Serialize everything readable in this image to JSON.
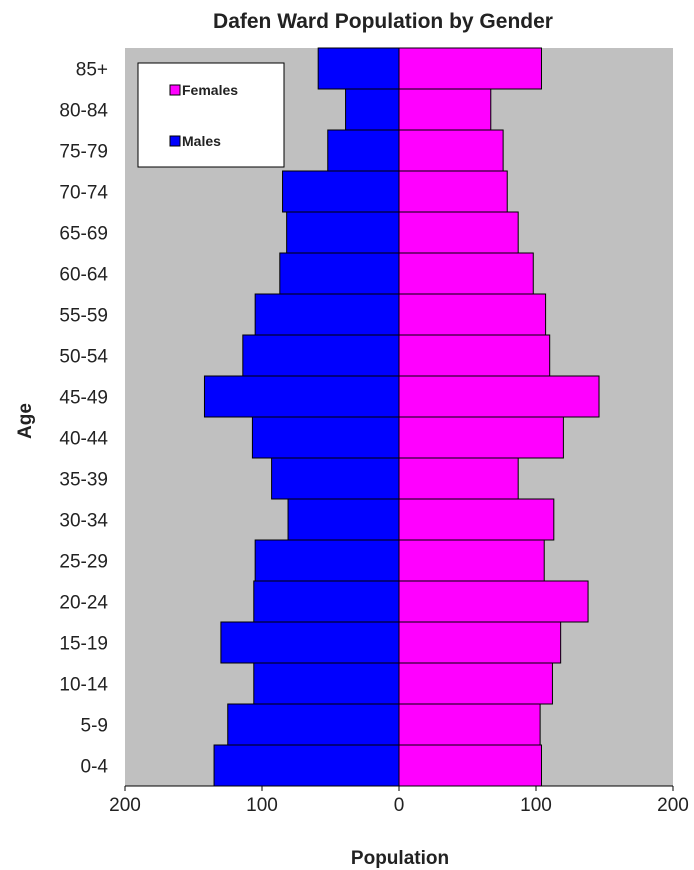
{
  "chart_data": {
    "type": "bar",
    "orientation": "horizontal",
    "title": "Dafen Ward Population by Gender",
    "xlabel": "Population",
    "ylabel": "Age",
    "categories": [
      "0-4",
      "5-9",
      "10-14",
      "15-19",
      "20-24",
      "25-29",
      "30-34",
      "35-39",
      "40-44",
      "45-49",
      "50-54",
      "55-59",
      "60-64",
      "65-69",
      "70-74",
      "75-79",
      "80-84",
      "85+"
    ],
    "series": [
      {
        "name": "Males",
        "color": "#0000ff",
        "values": [
          -135,
          -125,
          -106,
          -130,
          -106,
          -105,
          -81,
          -93,
          -107,
          -142,
          -114,
          -105,
          -87,
          -82,
          -85,
          -52,
          -39,
          -59
        ]
      },
      {
        "name": "Females",
        "color": "#ff00ff",
        "values": [
          104,
          103,
          112,
          118,
          138,
          106,
          113,
          87,
          120,
          146,
          110,
          107,
          98,
          87,
          79,
          76,
          67,
          104
        ]
      }
    ],
    "xlim": [
      -200,
      200
    ],
    "xticks": [
      {
        "value": -200,
        "label": "200"
      },
      {
        "value": -100,
        "label": "100"
      },
      {
        "value": 0,
        "label": "0"
      },
      {
        "value": 100,
        "label": "100"
      },
      {
        "value": 200,
        "label": "200"
      }
    ],
    "grid": false,
    "plot_background": "#c0c0c0",
    "legend": {
      "position": "top-left",
      "entries": [
        "Females",
        "Males"
      ]
    }
  }
}
